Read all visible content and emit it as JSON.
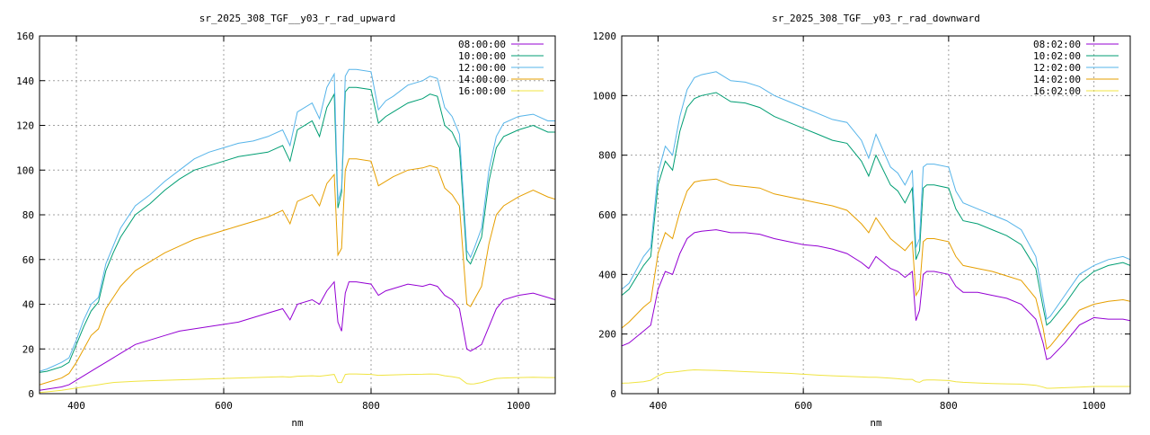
{
  "chart_data": [
    {
      "type": "line",
      "title": "sr_2025_308_TGF__y03_r_rad_upward",
      "xlabel": "nm",
      "ylabel": "",
      "xlim": [
        350,
        1050
      ],
      "ylim": [
        0,
        160
      ],
      "xticks": [
        "400",
        "600",
        "800",
        "1000"
      ],
      "yticks": [
        "0",
        "20",
        "40",
        "60",
        "80",
        "100",
        "120",
        "140",
        "160"
      ],
      "grid": true,
      "legend_position": "top-right",
      "x": [
        350,
        360,
        380,
        390,
        400,
        410,
        420,
        430,
        440,
        450,
        460,
        480,
        500,
        520,
        540,
        560,
        580,
        600,
        620,
        640,
        660,
        680,
        690,
        700,
        720,
        730,
        740,
        750,
        755,
        760,
        765,
        770,
        780,
        800,
        810,
        820,
        830,
        850,
        870,
        880,
        890,
        900,
        910,
        920,
        930,
        935,
        940,
        950,
        960,
        970,
        980,
        1000,
        1020,
        1040,
        1050
      ],
      "series": [
        {
          "name": "08:00:00",
          "color": "#9400d3",
          "values": [
            1.5,
            2,
            3,
            4,
            6,
            8,
            10,
            12,
            14,
            16,
            18,
            22,
            24,
            26,
            28,
            29,
            30,
            31,
            32,
            34,
            36,
            38,
            33,
            40,
            42,
            40,
            46,
            50,
            32,
            28,
            45,
            50,
            50,
            49,
            44,
            46,
            47,
            49,
            48,
            49,
            48,
            44,
            42,
            38,
            20,
            19,
            20,
            22,
            30,
            38,
            42,
            44,
            45,
            43,
            42
          ]
        },
        {
          "name": "10:00:00",
          "color": "#009e73",
          "values": [
            9.5,
            10,
            12,
            14,
            22,
            30,
            37,
            41,
            55,
            63,
            70,
            80,
            85,
            91,
            96,
            100,
            102,
            104,
            106,
            107,
            108,
            111,
            104,
            118,
            122,
            115,
            128,
            134,
            83,
            90,
            135,
            137,
            137,
            136,
            121,
            124,
            126,
            130,
            132,
            134,
            133,
            120,
            117,
            110,
            60,
            58,
            62,
            70,
            95,
            110,
            115,
            118,
            120,
            117,
            117
          ]
        },
        {
          "name": "12:00:00",
          "color": "#56b4e9",
          "values": [
            10,
            11,
            14,
            16,
            24,
            33,
            40,
            43,
            58,
            66,
            74,
            84,
            89,
            95,
            100,
            105,
            108,
            110,
            112,
            113,
            115,
            118,
            111,
            126,
            130,
            123,
            137,
            143,
            86,
            92,
            142,
            145,
            145,
            144,
            127,
            131,
            133,
            138,
            140,
            142,
            141,
            128,
            124,
            116,
            64,
            61,
            65,
            74,
            100,
            115,
            121,
            124,
            125,
            122,
            122
          ]
        },
        {
          "name": "14:00:00",
          "color": "#e69f00",
          "values": [
            4,
            5,
            7,
            9,
            14,
            20,
            26,
            29,
            38,
            43,
            48,
            55,
            59,
            63,
            66,
            69,
            71,
            73,
            75,
            77,
            79,
            82,
            76,
            86,
            89,
            84,
            94,
            98,
            62,
            65,
            100,
            105,
            105,
            104,
            93,
            95,
            97,
            100,
            101,
            102,
            101,
            92,
            89,
            84,
            40,
            39,
            42,
            48,
            67,
            80,
            84,
            88,
            91,
            88,
            87
          ]
        },
        {
          "name": "16:00:00",
          "color": "#f0e442",
          "values": [
            0.5,
            0.8,
            1.5,
            2,
            2.5,
            3,
            3.5,
            4,
            4.5,
            5,
            5.2,
            5.5,
            5.8,
            6,
            6.2,
            6.4,
            6.6,
            6.8,
            7,
            7.2,
            7.4,
            7.6,
            7.4,
            7.8,
            8,
            7.8,
            8.2,
            8.6,
            5,
            5,
            8.6,
            8.8,
            8.8,
            8.6,
            8.2,
            8.3,
            8.4,
            8.6,
            8.7,
            8.8,
            8.7,
            8.0,
            7.6,
            7.0,
            4.5,
            4.3,
            4.4,
            5,
            6,
            6.8,
            7,
            7.2,
            7.3,
            7.2,
            7.2
          ]
        }
      ]
    },
    {
      "type": "line",
      "title": "sr_2025_308_TGF__y03_r_rad_downward",
      "xlabel": "nm",
      "ylabel": "",
      "xlim": [
        350,
        1050
      ],
      "ylim": [
        0,
        1200
      ],
      "xticks": [
        "400",
        "600",
        "800",
        "1000"
      ],
      "yticks": [
        "0",
        "200",
        "400",
        "600",
        "800",
        "1000",
        "1200"
      ],
      "grid": true,
      "legend_position": "top-right",
      "x": [
        350,
        360,
        380,
        390,
        400,
        410,
        420,
        430,
        440,
        450,
        460,
        480,
        500,
        520,
        540,
        560,
        580,
        600,
        620,
        640,
        660,
        680,
        690,
        700,
        720,
        730,
        740,
        750,
        755,
        760,
        765,
        770,
        780,
        800,
        810,
        820,
        840,
        860,
        880,
        900,
        920,
        930,
        935,
        940,
        960,
        980,
        1000,
        1020,
        1040,
        1050
      ],
      "series": [
        {
          "name": "08:02:00",
          "color": "#9400d3",
          "values": [
            160,
            170,
            210,
            230,
            350,
            410,
            400,
            470,
            520,
            540,
            545,
            550,
            540,
            540,
            535,
            520,
            510,
            500,
            495,
            485,
            470,
            440,
            420,
            460,
            420,
            410,
            390,
            410,
            245,
            280,
            400,
            410,
            410,
            400,
            360,
            340,
            340,
            330,
            320,
            300,
            250,
            170,
            115,
            120,
            170,
            230,
            255,
            250,
            250,
            245
          ]
        },
        {
          "name": "10:02:00",
          "color": "#009e73",
          "values": [
            330,
            350,
            430,
            460,
            700,
            780,
            750,
            880,
            960,
            990,
            1000,
            1010,
            980,
            975,
            960,
            930,
            910,
            890,
            870,
            850,
            840,
            780,
            730,
            800,
            700,
            680,
            640,
            690,
            450,
            480,
            690,
            700,
            700,
            690,
            620,
            580,
            570,
            550,
            530,
            500,
            420,
            290,
            230,
            240,
            300,
            370,
            410,
            430,
            440,
            430
          ]
        },
        {
          "name": "12:02:00",
          "color": "#56b4e9",
          "values": [
            350,
            370,
            460,
            490,
            740,
            830,
            800,
            930,
            1020,
            1060,
            1070,
            1080,
            1050,
            1045,
            1030,
            1000,
            980,
            960,
            940,
            920,
            910,
            850,
            790,
            870,
            760,
            740,
            700,
            750,
            490,
            520,
            760,
            770,
            770,
            760,
            680,
            640,
            620,
            600,
            580,
            550,
            460,
            320,
            250,
            260,
            330,
            400,
            430,
            450,
            460,
            450
          ]
        },
        {
          "name": "14:02:00",
          "color": "#e69f00",
          "values": [
            220,
            240,
            290,
            310,
            470,
            540,
            520,
            610,
            680,
            710,
            715,
            720,
            700,
            695,
            690,
            670,
            660,
            650,
            640,
            630,
            615,
            570,
            540,
            590,
            520,
            500,
            480,
            510,
            330,
            350,
            510,
            520,
            520,
            510,
            460,
            430,
            420,
            410,
            395,
            380,
            320,
            220,
            150,
            160,
            220,
            280,
            300,
            310,
            315,
            310
          ]
        },
        {
          "name": "16:02:00",
          "color": "#f0e442",
          "values": [
            35,
            36,
            40,
            45,
            60,
            70,
            72,
            75,
            78,
            80,
            79,
            78,
            76,
            74,
            72,
            70,
            68,
            65,
            62,
            60,
            58,
            56,
            55,
            55,
            52,
            50,
            48,
            48,
            40,
            38,
            45,
            46,
            46,
            44,
            40,
            38,
            36,
            34,
            33,
            32,
            28,
            22,
            18,
            18,
            20,
            22,
            24,
            24,
            24,
            24
          ]
        }
      ]
    }
  ]
}
